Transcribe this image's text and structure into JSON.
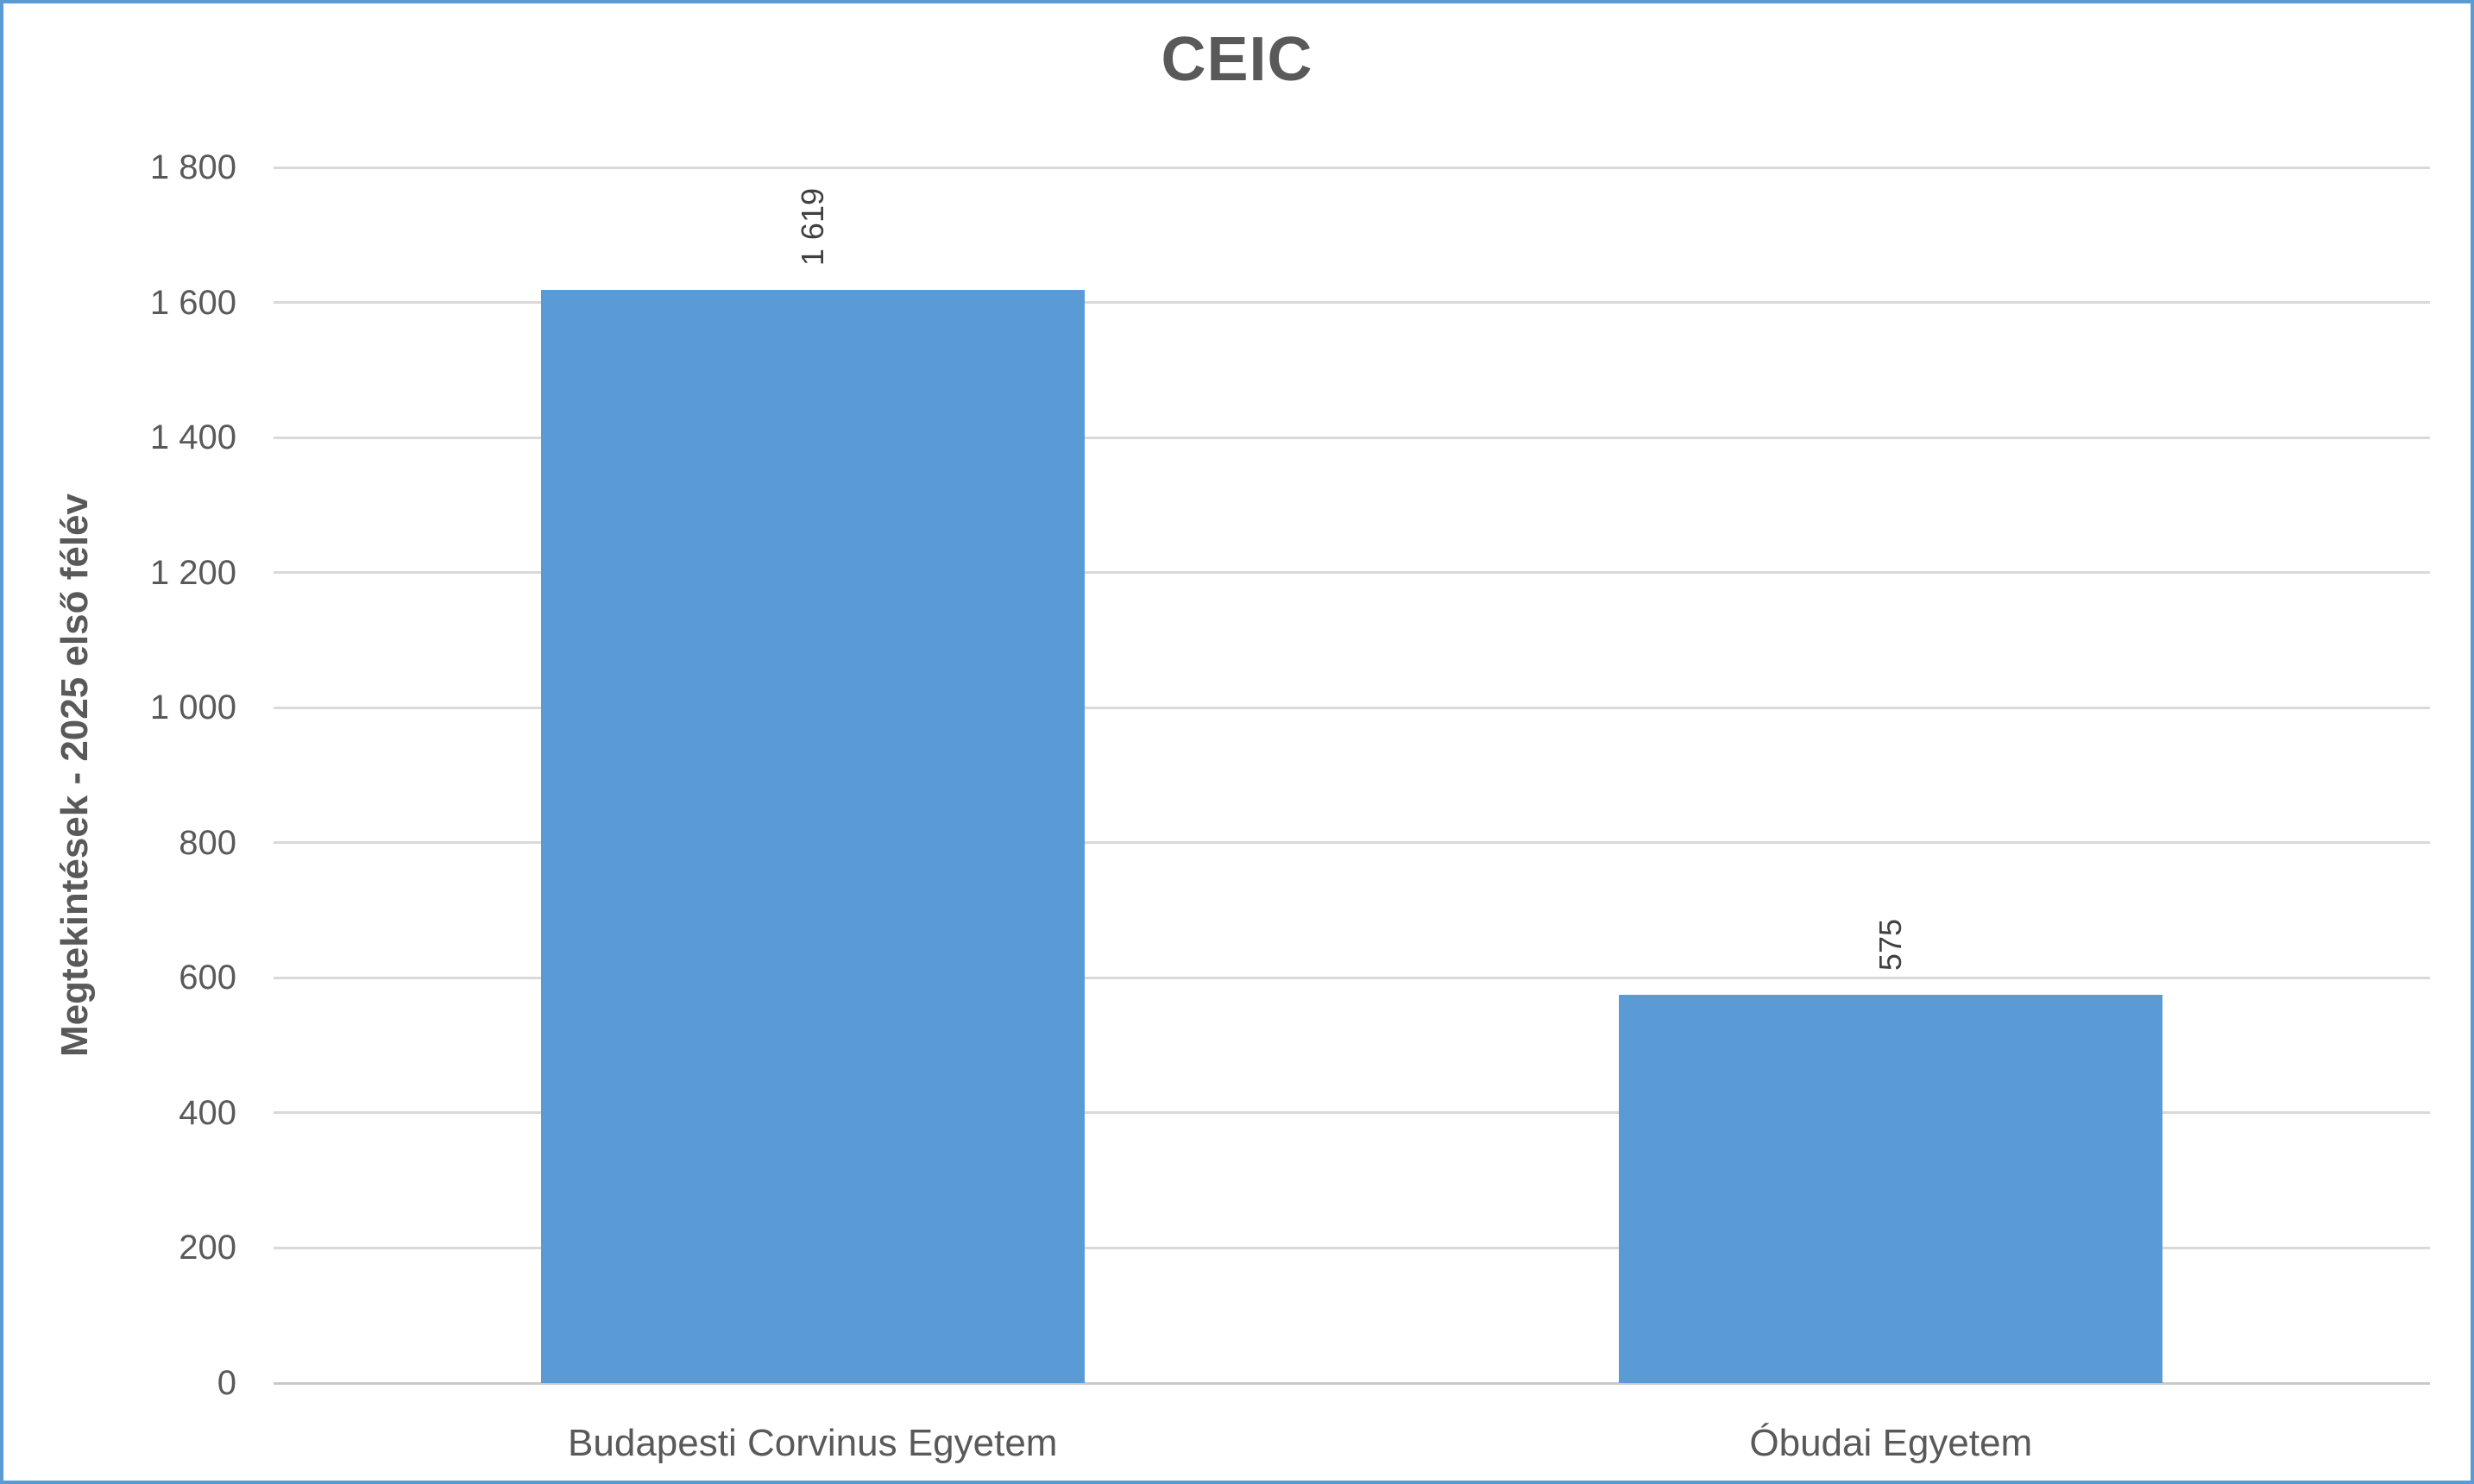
{
  "chart_data": {
    "type": "bar",
    "title": "CEIC",
    "categories": [
      "Budapesti Corvinus Egyetem",
      "Óbudai Egyetem"
    ],
    "values": [
      1619,
      575
    ],
    "value_labels": [
      "1 619",
      "575"
    ],
    "xlabel": "",
    "ylabel": "Megtekintések - 2025 első félév",
    "ylim": [
      0,
      1800
    ],
    "yticks": [
      {
        "value": 0,
        "label": "0"
      },
      {
        "value": 200,
        "label": "200"
      },
      {
        "value": 400,
        "label": "400"
      },
      {
        "value": 600,
        "label": "600"
      },
      {
        "value": 800,
        "label": "800"
      },
      {
        "value": 1000,
        "label": "1 000"
      },
      {
        "value": 1200,
        "label": "1 200"
      },
      {
        "value": 1400,
        "label": "1 400"
      },
      {
        "value": 1600,
        "label": "1 600"
      },
      {
        "value": 1800,
        "label": "1 800"
      }
    ],
    "grid": true,
    "legend": false,
    "bar_gap_percent": 100,
    "colors": {
      "bar": "#5B9BD5",
      "frame_border": "#5B9BD5",
      "text": "#595959",
      "data_label_text": "#404040",
      "gridline": "#D9D9D9",
      "axis_line": "#C9C9C9",
      "background": "#FFFFFF"
    }
  }
}
